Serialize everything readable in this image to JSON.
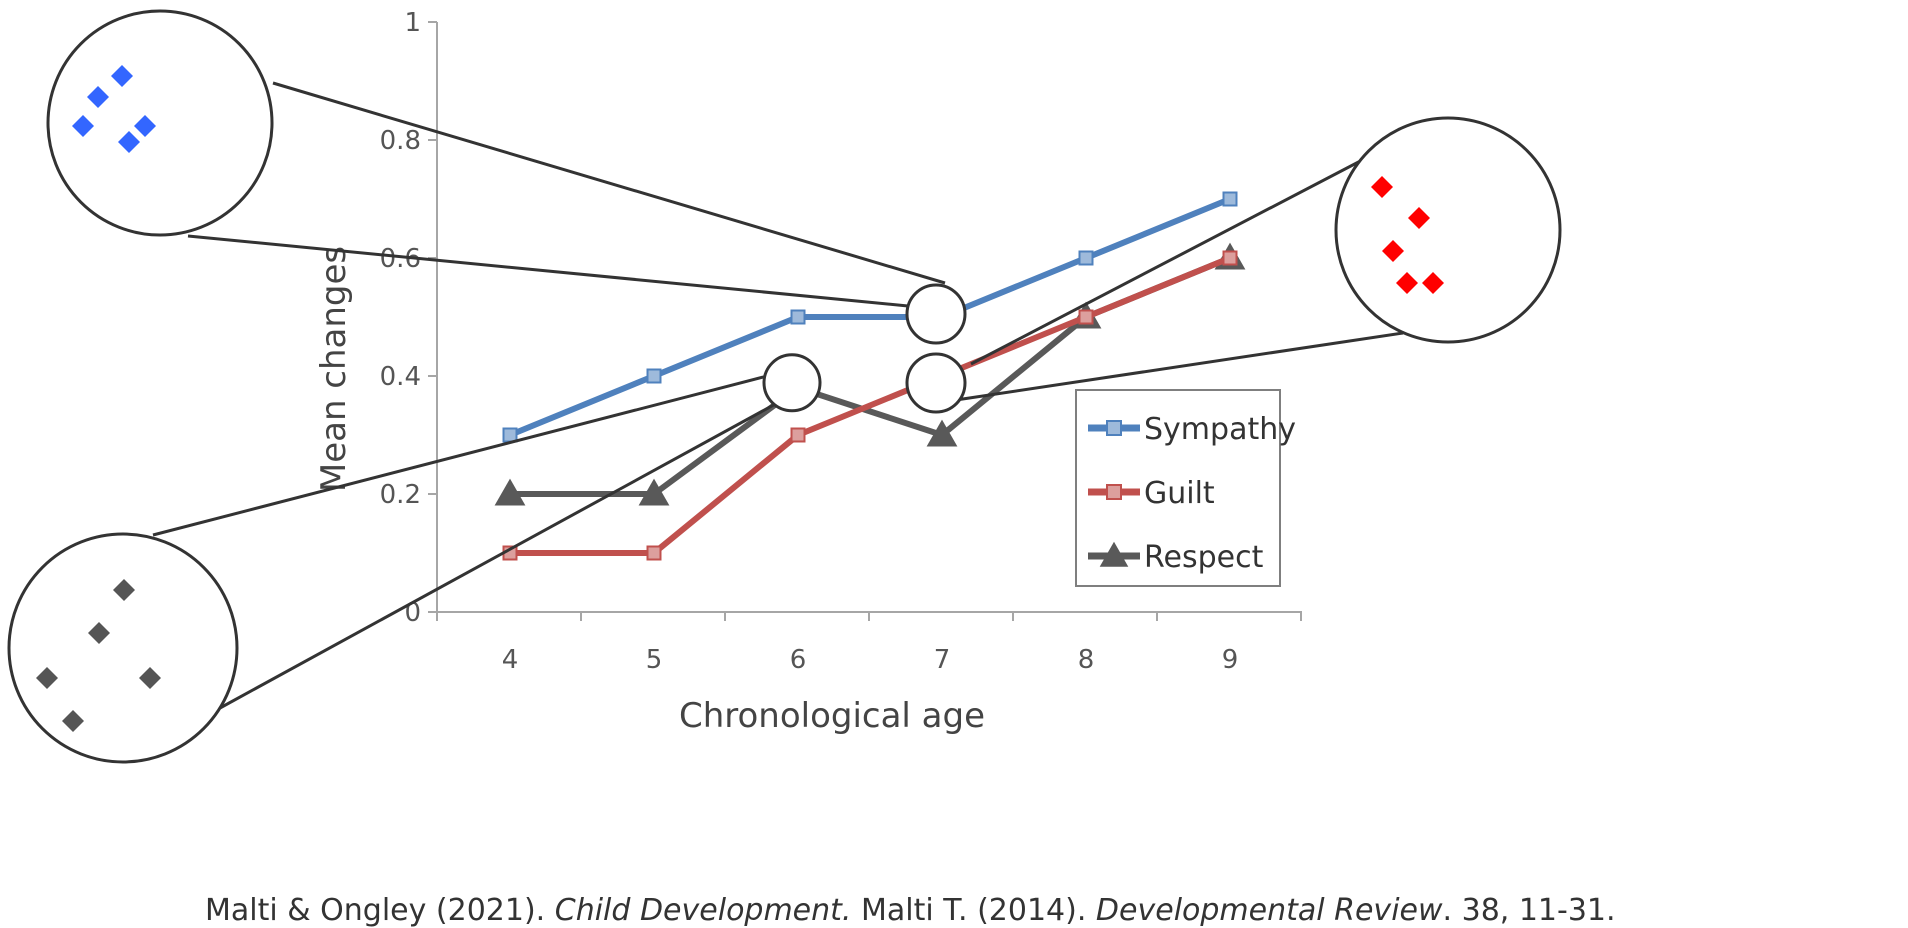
{
  "chart_data": {
    "type": "line",
    "xlabel": "Chronological age",
    "ylabel": "Mean changes",
    "x": [
      4,
      5,
      6,
      7,
      8,
      9
    ],
    "ylim": [
      0,
      1
    ],
    "yticks": [
      "0",
      "0.2",
      "0.4",
      "0.6",
      "0.8",
      "1"
    ],
    "grid": false,
    "legend_position": "right",
    "series": [
      {
        "name": "Sympathy",
        "color": "#4f81bd",
        "marker": "square",
        "values": [
          0.3,
          0.4,
          0.5,
          0.5,
          0.6,
          0.7
        ]
      },
      {
        "name": "Guilt",
        "color": "#c0504d",
        "marker": "square",
        "values": [
          0.1,
          0.1,
          0.3,
          0.4,
          0.5,
          0.6
        ]
      },
      {
        "name": "Respect",
        "color": "#595959",
        "marker": "triangle",
        "values": [
          0.2,
          0.2,
          0.38,
          0.3,
          0.5,
          0.6
        ]
      }
    ],
    "annotations": {
      "magnifiers": [
        {
          "target_series": "Sympathy",
          "target_x": 7,
          "dot_color": "#3366ff"
        },
        {
          "target_series": "Guilt",
          "target_x": 7,
          "dot_color": "#ff0000"
        },
        {
          "target_series": "Respect",
          "target_x": 6,
          "dot_color": "#555555"
        }
      ]
    }
  },
  "citation": {
    "part1": "Malti & Ongley (2021). ",
    "journal1": "Child Development.",
    "part2": " Malti T. (2014). ",
    "journal2": "Developmental Review",
    "part3": ". 38, 11-31."
  }
}
